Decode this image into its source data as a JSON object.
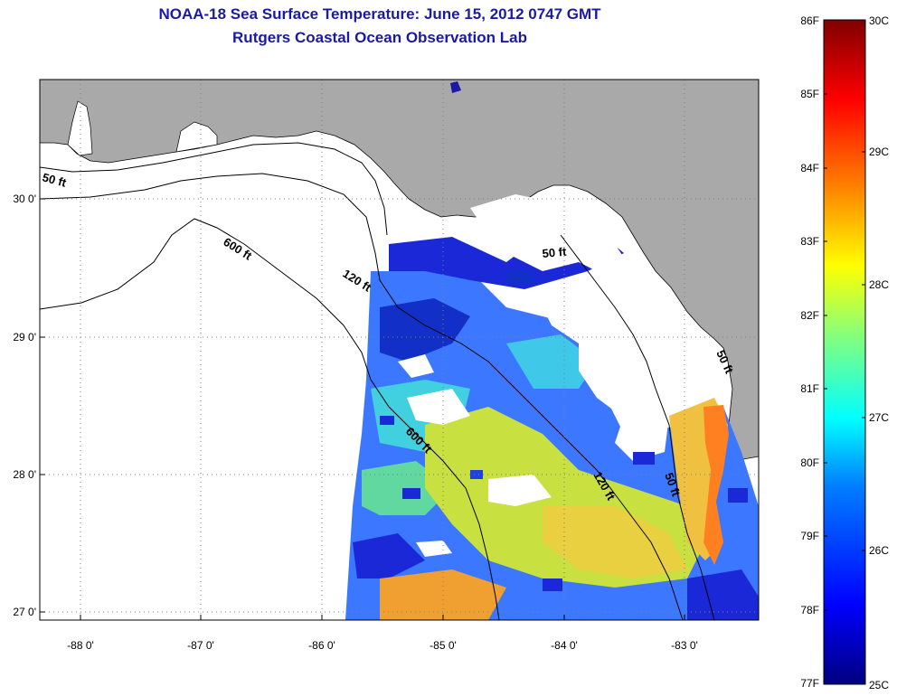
{
  "header": {
    "title_line1": "NOAA-18 Sea Surface Temperature:  June 15, 2012 0747 GMT",
    "title_line2": "Rutgers Coastal Ocean Observation Lab"
  },
  "map": {
    "lon_ticks": [
      "-88 0'",
      "-87 0'",
      "-86 0'",
      "-85 0'",
      "-84 0'",
      "-83 0'"
    ],
    "lat_ticks": [
      "30 0'",
      "29 0'",
      "28 0'",
      "27 0'"
    ],
    "lon_range": [
      -88.33,
      -82.4
    ],
    "lat_range": [
      26.95,
      30.85
    ],
    "contour_labels": [
      "50 ft",
      "600 ft",
      "120 ft",
      "50 ft",
      "600 ft",
      "120 ft",
      "50 ft",
      "50 ft"
    ],
    "colors": {
      "land": "#a9a9a9",
      "water": "#ffffff",
      "grid": "#808080"
    }
  },
  "colorbar": {
    "fahrenheit_labels": [
      "86F",
      "85F",
      "84F",
      "83F",
      "82F",
      "81F",
      "80F",
      "79F",
      "78F",
      "77F"
    ],
    "celsius_labels": [
      "30C",
      "29C",
      "28C",
      "27C",
      "26C",
      "25C"
    ],
    "stops": [
      "#000080",
      "#0000ff",
      "#0080ff",
      "#00ffff",
      "#80ff80",
      "#ffff00",
      "#ff8000",
      "#ff0000",
      "#800000"
    ]
  }
}
